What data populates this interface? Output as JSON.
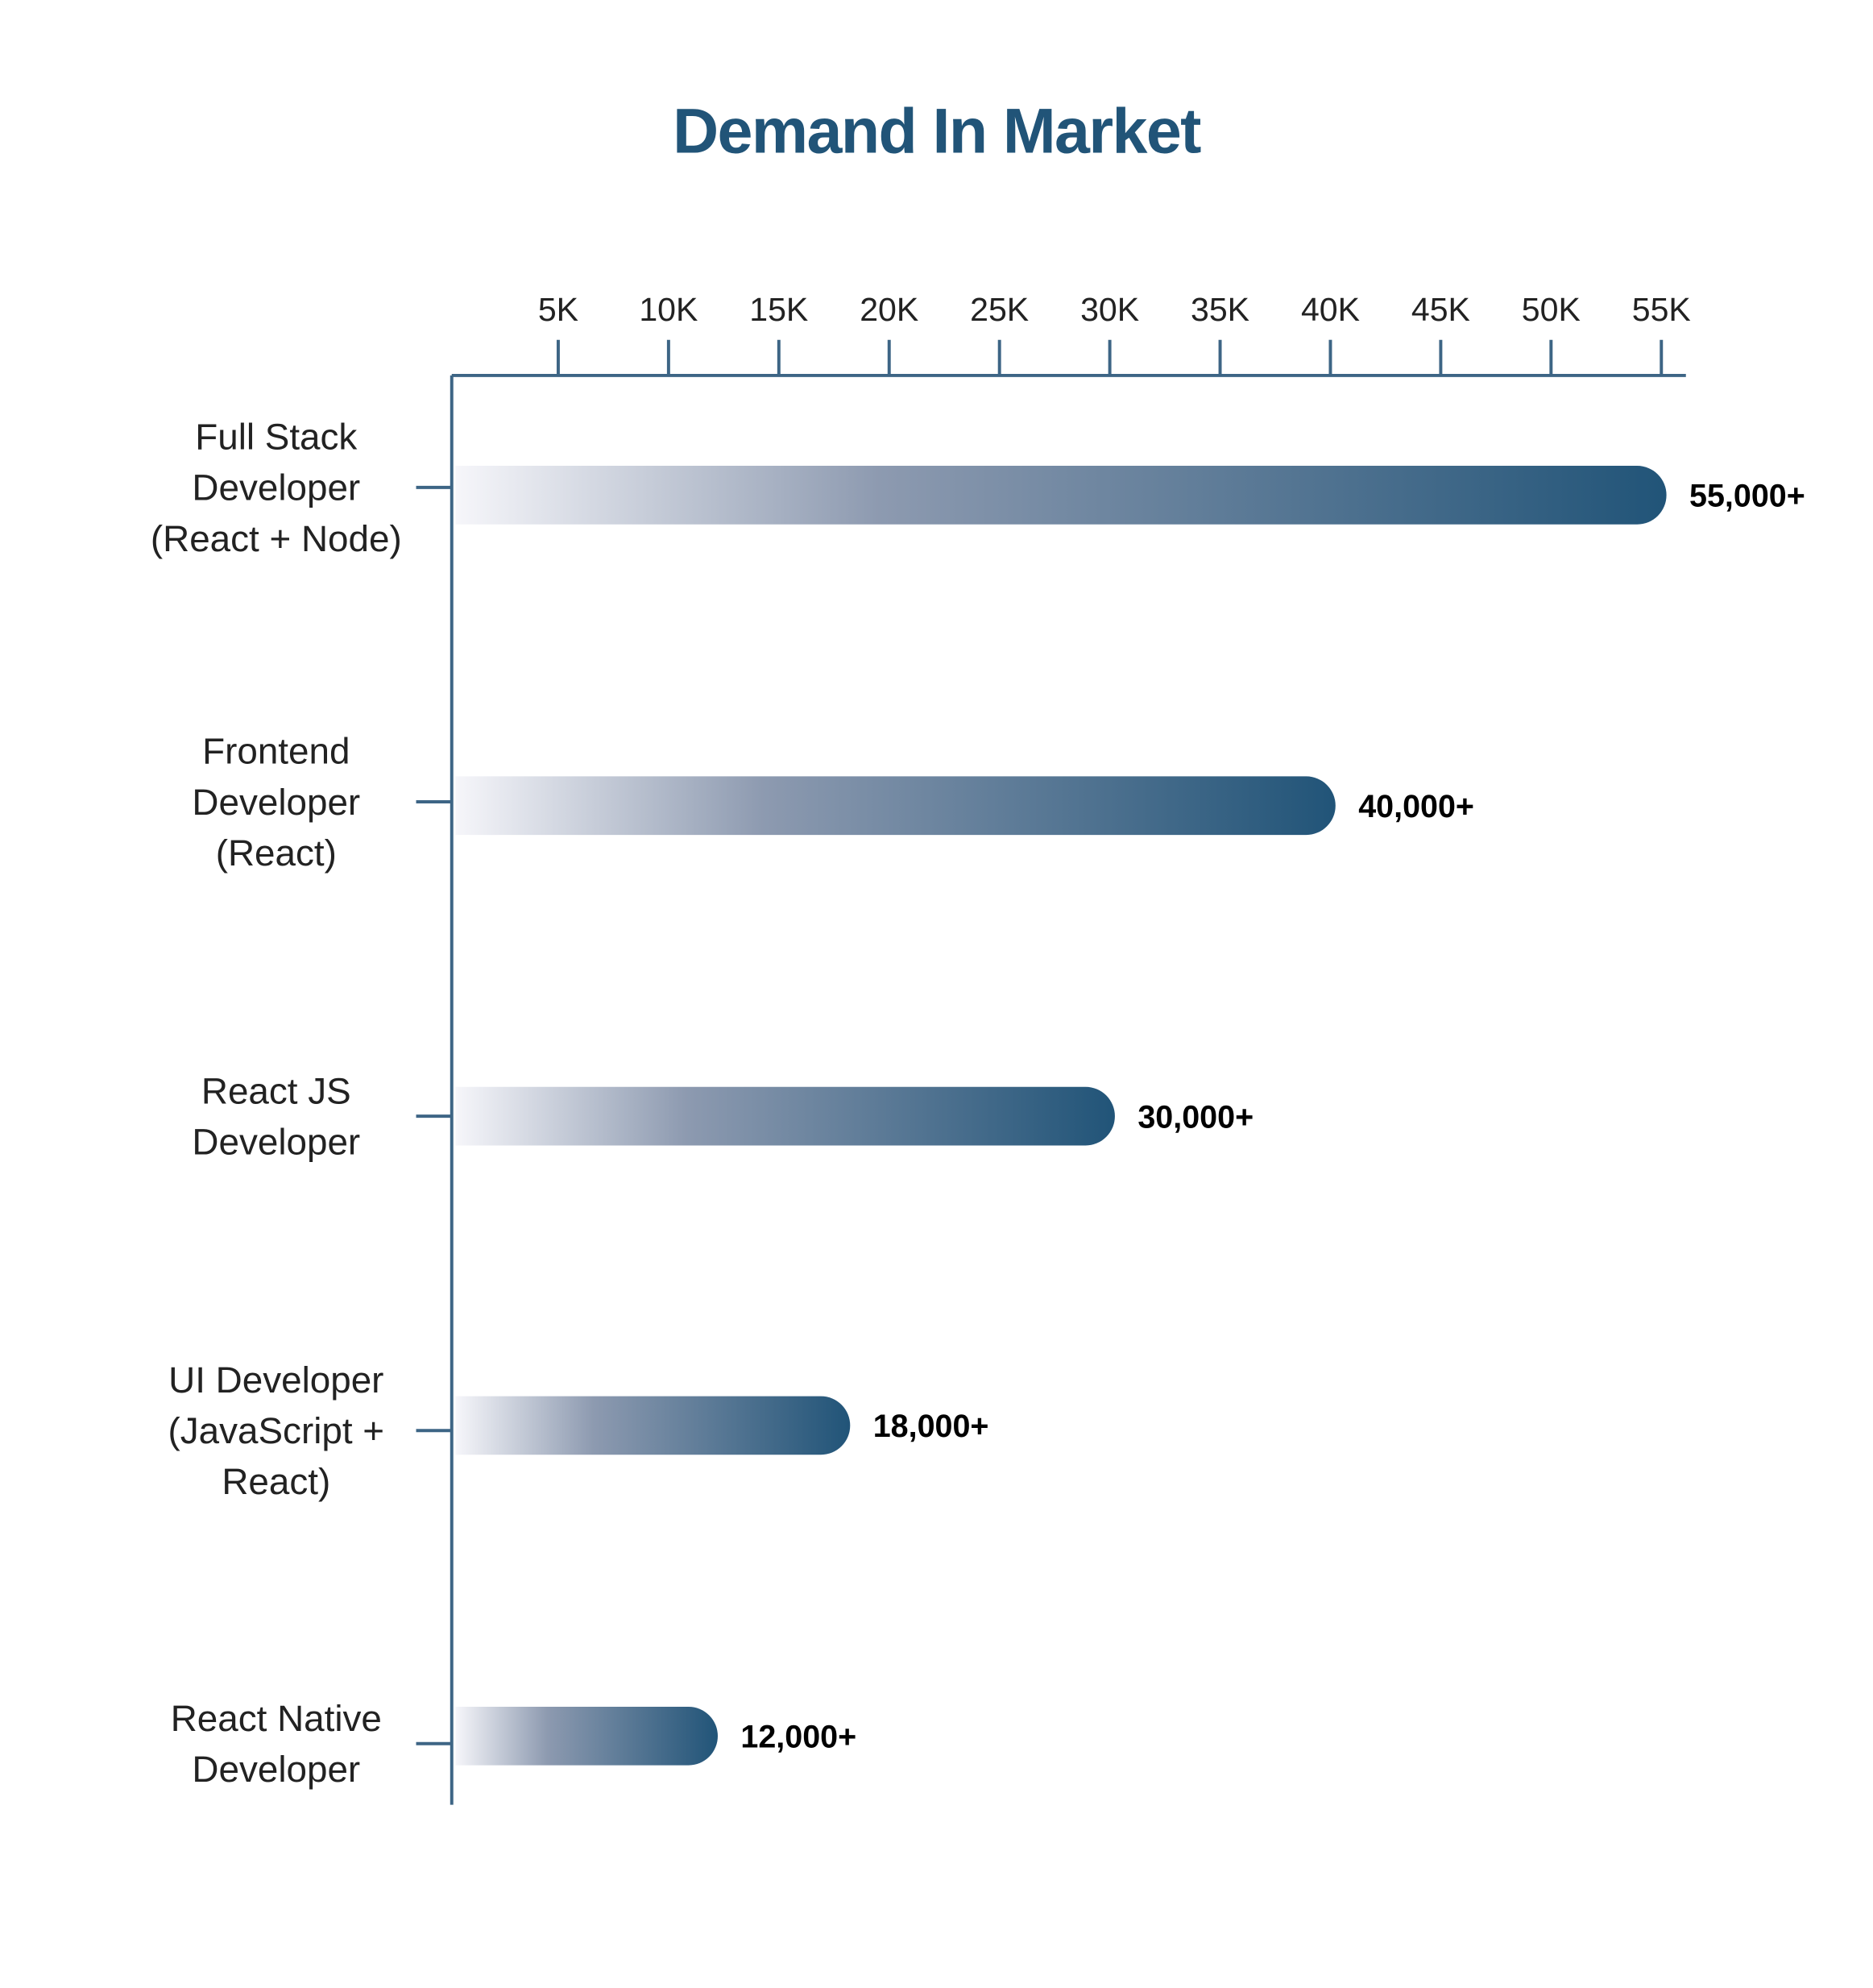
{
  "chart_data": {
    "type": "bar",
    "orientation": "horizontal",
    "title": "Demand In Market",
    "xlabel": "",
    "ylabel": "",
    "xlim": [
      0,
      55000
    ],
    "x_axis_position": "top",
    "grid": false,
    "x_ticks": [
      {
        "value": 5000,
        "label": "5K"
      },
      {
        "value": 10000,
        "label": "10K"
      },
      {
        "value": 15000,
        "label": "15K"
      },
      {
        "value": 20000,
        "label": "20K"
      },
      {
        "value": 25000,
        "label": "25K"
      },
      {
        "value": 30000,
        "label": "30K"
      },
      {
        "value": 35000,
        "label": "35K"
      },
      {
        "value": 40000,
        "label": "40K"
      },
      {
        "value": 45000,
        "label": "45K"
      },
      {
        "value": 50000,
        "label": "50K"
      },
      {
        "value": 55000,
        "label": "55K"
      }
    ],
    "categories": [
      [
        "Full Stack",
        "Developer",
        "(React + Node)"
      ],
      [
        "Frontend",
        "Developer",
        "(React)"
      ],
      [
        "React JS",
        "Developer"
      ],
      [
        "UI Developer",
        "(JavaScript +",
        "React)"
      ],
      [
        "React Native",
        "Developer"
      ]
    ],
    "values": [
      55000,
      40000,
      30000,
      18000,
      12000
    ],
    "data_labels": [
      "55,000+",
      "40,000+",
      "30,000+",
      "18,000+",
      "12,000+"
    ],
    "colors": {
      "bar_start": "#f6f6fa",
      "bar_mid": "#8d9ab0",
      "bar_end": "#215478",
      "title": "#215478",
      "axis": "#3d6585"
    }
  }
}
